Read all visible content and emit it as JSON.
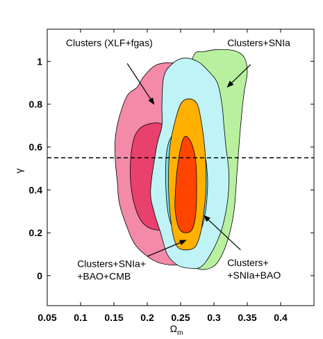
{
  "chart_data": {
    "type": "contour",
    "xlabel": "Ω",
    "xlabel_sub": "m",
    "ylabel": "γ",
    "xlim": [
      0.05,
      0.45
    ],
    "ylim": [
      -0.14,
      1.15
    ],
    "grid": false,
    "x_ticks": [
      0.05,
      0.1,
      0.15,
      0.2,
      0.25,
      0.3,
      0.35,
      0.4
    ],
    "x_tick_labels": [
      "0.05",
      "0.1",
      "0.15",
      "0.2",
      "0.25",
      "0.3",
      "0.35",
      "0.4"
    ],
    "y_ticks": [
      0,
      0.2,
      0.4,
      0.6,
      0.8,
      1
    ],
    "y_tick_labels": [
      "0",
      "0.2",
      "0.4",
      "0.6",
      "0.8",
      "1"
    ],
    "reference_line": {
      "y": 0.55,
      "style": "dashed"
    },
    "series": [
      {
        "key": "clusters",
        "outer_color": "#f28aa8",
        "inner_color": "#e8416e",
        "outer": [
          [
            0.215,
            0.985
          ],
          [
            0.195,
            0.93
          ],
          [
            0.185,
            0.88
          ],
          [
            0.17,
            0.84
          ],
          [
            0.158,
            0.74
          ],
          [
            0.152,
            0.64
          ],
          [
            0.152,
            0.54
          ],
          [
            0.155,
            0.44
          ],
          [
            0.158,
            0.34
          ],
          [
            0.168,
            0.24
          ],
          [
            0.183,
            0.14
          ],
          [
            0.21,
            0.07
          ],
          [
            0.235,
            0.05
          ],
          [
            0.255,
            0.06
          ],
          [
            0.265,
            0.1
          ],
          [
            0.268,
            0.3
          ],
          [
            0.27,
            0.6
          ],
          [
            0.268,
            0.85
          ],
          [
            0.262,
            0.95
          ],
          [
            0.245,
            0.99
          ]
        ],
        "inner": [
          [
            0.205,
            0.71
          ],
          [
            0.19,
            0.69
          ],
          [
            0.18,
            0.64
          ],
          [
            0.175,
            0.54
          ],
          [
            0.175,
            0.44
          ],
          [
            0.18,
            0.34
          ],
          [
            0.19,
            0.26
          ],
          [
            0.205,
            0.22
          ],
          [
            0.225,
            0.22
          ],
          [
            0.24,
            0.3
          ],
          [
            0.245,
            0.45
          ],
          [
            0.242,
            0.6
          ],
          [
            0.232,
            0.68
          ],
          [
            0.22,
            0.71
          ]
        ]
      },
      {
        "key": "snia",
        "outer_color": "#b8f0a0",
        "inner_color": "#b8f0a0",
        "outer": [
          [
            0.285,
            1.045
          ],
          [
            0.27,
            1.03
          ],
          [
            0.262,
            0.9
          ],
          [
            0.262,
            0.7
          ],
          [
            0.262,
            0.5
          ],
          [
            0.265,
            0.3
          ],
          [
            0.268,
            0.1
          ],
          [
            0.272,
            0.04
          ],
          [
            0.288,
            0.03
          ],
          [
            0.305,
            0.06
          ],
          [
            0.32,
            0.16
          ],
          [
            0.33,
            0.3
          ],
          [
            0.335,
            0.5
          ],
          [
            0.34,
            0.7
          ],
          [
            0.345,
            0.85
          ],
          [
            0.35,
            0.95
          ],
          [
            0.345,
            1.02
          ],
          [
            0.33,
            1.05
          ],
          [
            0.305,
            1.055
          ]
        ],
        "inner": []
      },
      {
        "key": "clusters_snia_bao",
        "outer_color": "#bff3f6",
        "inner_color": "#73e0ec",
        "outer": [
          [
            0.255,
            1.015
          ],
          [
            0.238,
            0.99
          ],
          [
            0.225,
            0.93
          ],
          [
            0.222,
            0.8
          ],
          [
            0.222,
            0.7
          ],
          [
            0.214,
            0.6
          ],
          [
            0.205,
            0.4
          ],
          [
            0.21,
            0.3
          ],
          [
            0.22,
            0.2
          ],
          [
            0.23,
            0.1
          ],
          [
            0.245,
            0.05
          ],
          [
            0.262,
            0.035
          ],
          [
            0.28,
            0.04
          ],
          [
            0.295,
            0.1
          ],
          [
            0.31,
            0.2
          ],
          [
            0.318,
            0.3
          ],
          [
            0.322,
            0.4
          ],
          [
            0.322,
            0.5
          ],
          [
            0.318,
            0.6
          ],
          [
            0.315,
            0.7
          ],
          [
            0.312,
            0.8
          ],
          [
            0.305,
            0.9
          ],
          [
            0.29,
            0.96
          ],
          [
            0.275,
            1.0
          ]
        ],
        "inner": [
          [
            0.24,
            0.66
          ],
          [
            0.232,
            0.62
          ],
          [
            0.228,
            0.54
          ],
          [
            0.228,
            0.4
          ],
          [
            0.232,
            0.28
          ],
          [
            0.242,
            0.2
          ],
          [
            0.258,
            0.16
          ],
          [
            0.275,
            0.18
          ],
          [
            0.285,
            0.26
          ],
          [
            0.29,
            0.38
          ],
          [
            0.29,
            0.48
          ],
          [
            0.285,
            0.58
          ],
          [
            0.272,
            0.64
          ],
          [
            0.255,
            0.67
          ]
        ]
      },
      {
        "key": "clusters_snia_bao_cmb",
        "outer_color": "#ffb000",
        "inner_color": "#ff4400",
        "outer": [
          [
            0.262,
            0.825
          ],
          [
            0.25,
            0.8
          ],
          [
            0.24,
            0.7
          ],
          [
            0.234,
            0.6
          ],
          [
            0.232,
            0.5
          ],
          [
            0.232,
            0.4
          ],
          [
            0.234,
            0.3
          ],
          [
            0.238,
            0.2
          ],
          [
            0.245,
            0.135
          ],
          [
            0.258,
            0.12
          ],
          [
            0.272,
            0.135
          ],
          [
            0.28,
            0.2
          ],
          [
            0.285,
            0.3
          ],
          [
            0.288,
            0.4
          ],
          [
            0.288,
            0.5
          ],
          [
            0.286,
            0.6
          ],
          [
            0.282,
            0.7
          ],
          [
            0.275,
            0.8
          ]
        ],
        "inner": [
          [
            0.258,
            0.65
          ],
          [
            0.252,
            0.62
          ],
          [
            0.245,
            0.5
          ],
          [
            0.242,
            0.38
          ],
          [
            0.242,
            0.3
          ],
          [
            0.248,
            0.22
          ],
          [
            0.258,
            0.2
          ],
          [
            0.268,
            0.22
          ],
          [
            0.273,
            0.3
          ],
          [
            0.274,
            0.45
          ],
          [
            0.272,
            0.55
          ],
          [
            0.266,
            0.62
          ]
        ]
      }
    ],
    "annotations": [
      {
        "key": "a1",
        "lines": [
          "Clusters (XLF+fgas)"
        ],
        "text_at": [
          0.078,
          1.07
        ],
        "align": "start",
        "arrow_from": [
          0.17,
          0.99
        ],
        "arrow_to": [
          0.21,
          0.8
        ]
      },
      {
        "key": "a2",
        "lines": [
          "Clusters+SNIa"
        ],
        "text_at": [
          0.32,
          1.07
        ],
        "align": "start",
        "arrow_from": [
          0.355,
          0.985
        ],
        "arrow_to": [
          0.32,
          0.88
        ]
      },
      {
        "key": "a3",
        "lines": [
          "Clusters+SNIa+",
          "+BAO+CMB"
        ],
        "text_at": [
          0.095,
          0.04
        ],
        "align": "start",
        "arrow_from": [
          0.2,
          0.09
        ],
        "arrow_to": [
          0.258,
          0.165
        ]
      },
      {
        "key": "a4",
        "lines": [
          "Clusters+",
          "+SNIa+BAO"
        ],
        "text_at": [
          0.32,
          0.045
        ],
        "align": "start",
        "arrow_from": [
          0.34,
          0.12
        ],
        "arrow_to": [
          0.285,
          0.28
        ]
      }
    ]
  }
}
